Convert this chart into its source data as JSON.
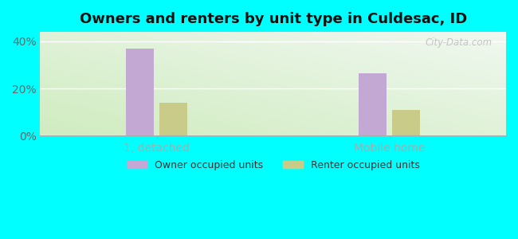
{
  "title": "Owners and renters by unit type in Culdesac, ID",
  "categories": [
    "1, detached",
    "Mobile home"
  ],
  "owner_values": [
    37.0,
    26.5
  ],
  "renter_values": [
    14.0,
    11.0
  ],
  "owner_color": "#c4a8d4",
  "renter_color": "#c8cc88",
  "bar_width": 0.12,
  "ylim": [
    0,
    44
  ],
  "yticks": [
    0,
    20,
    40
  ],
  "ytick_labels": [
    "0%",
    "20%",
    "40%"
  ],
  "legend_labels": [
    "Owner occupied units",
    "Renter occupied units"
  ],
  "background_color": "#00ffff",
  "title_fontsize": 13,
  "label_fontsize": 10,
  "tick_label_color": "#666666",
  "watermark": "City-Data.com"
}
